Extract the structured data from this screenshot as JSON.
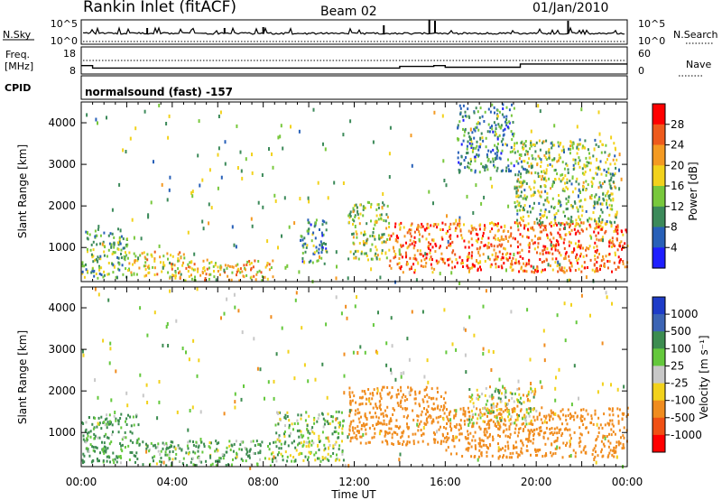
{
  "header": {
    "station": "Rankin Inlet (fitACF)",
    "beam": "Beam 02",
    "date": "01/Jan/2010"
  },
  "nsky_panel": {
    "left_label": "N.Sky",
    "left_tick_top": "10^5",
    "left_tick_bottom": "10^0",
    "right_tick_top": "10^5",
    "right_tick_bottom": "10^0",
    "right_label": "N.Search"
  },
  "freq_panel": {
    "left_label_1": "Freq.",
    "left_label_2": "[MHz]",
    "left_tick_top": "18",
    "left_tick_bottom": "8",
    "right_tick_top": "60",
    "right_tick_bottom": "0",
    "right_label": "Nave"
  },
  "cpid_panel": {
    "left_label": "CPID",
    "text": "normalsound (fast) -157"
  },
  "chart_data": [
    {
      "type": "heatmap",
      "parameter": "Power",
      "ylabel": "Slant Range [km]",
      "xlabel": "",
      "x_unit": "hours UT",
      "xlim": [
        0,
        24
      ],
      "ylim": [
        180,
        4500
      ],
      "y_ticks": [
        1000,
        2000,
        3000,
        4000
      ],
      "y_tick_labels": [
        "1000",
        "2000",
        "3000",
        "4000"
      ],
      "colorbar": {
        "label": "Power [dB]",
        "levels": [
          0,
          4,
          8,
          12,
          16,
          20,
          24,
          28,
          32
        ],
        "tick_labels": [
          "4",
          "8",
          "12",
          "16",
          "20",
          "24",
          "28"
        ],
        "colors": [
          "#1e1eff",
          "#2860b8",
          "#3c8a5a",
          "#78c83c",
          "#f2d21c",
          "#f49a22",
          "#ee5a1c",
          "#ff0000"
        ]
      },
      "echo_regions": [
        {
          "t0": 0.0,
          "t1": 2.0,
          "r0": 250,
          "r1": 1450,
          "level": 12
        },
        {
          "t0": 2.0,
          "t1": 4.5,
          "r0": 250,
          "r1": 900,
          "level": 18
        },
        {
          "t0": 4.5,
          "t1": 8.5,
          "r0": 200,
          "r1": 700,
          "level": 20
        },
        {
          "t0": 9.6,
          "t1": 10.8,
          "r0": 600,
          "r1": 1700,
          "level": 10
        },
        {
          "t0": 11.7,
          "t1": 13.5,
          "r0": 700,
          "r1": 2100,
          "level": 15
        },
        {
          "t0": 13.5,
          "t1": 24.0,
          "r0": 400,
          "r1": 1600,
          "level": 25
        },
        {
          "t0": 16.5,
          "t1": 19.0,
          "r0": 2800,
          "r1": 4450,
          "level": 10
        },
        {
          "t0": 19.0,
          "t1": 23.5,
          "r0": 1500,
          "r1": 3600,
          "level": 14
        }
      ]
    },
    {
      "type": "heatmap",
      "parameter": "Velocity",
      "ylabel": "Slant Range [km]",
      "xlabel": "Time UT",
      "x_unit": "hours UT",
      "xlim": [
        0,
        24
      ],
      "ylim": [
        180,
        4500
      ],
      "x_ticks": [
        0,
        4,
        8,
        12,
        16,
        20,
        24
      ],
      "x_tick_labels": [
        "00:00",
        "04:00",
        "08:00",
        "12:00",
        "16:00",
        "20:00",
        "00:00"
      ],
      "y_ticks": [
        1000,
        2000,
        3000,
        4000
      ],
      "y_tick_labels": [
        "1000",
        "2000",
        "3000",
        "4000"
      ],
      "colorbar": {
        "label": "Velocity [m s⁻¹]",
        "tick_labels": [
          "1000",
          "500",
          "100",
          "25",
          "-25",
          "-100",
          "-500",
          "-1000"
        ],
        "colors": [
          "#1e3cc8",
          "#3c64b4",
          "#3c8c50",
          "#64c83c",
          "#c8c8c8",
          "#f2d21c",
          "#f08c1e",
          "#f05014",
          "#ff0000"
        ]
      },
      "echo_regions": [
        {
          "t0": 0.0,
          "t1": 2.5,
          "r0": 250,
          "r1": 1450,
          "velocity": 150
        },
        {
          "t0": 2.5,
          "t1": 8.5,
          "r0": 200,
          "r1": 800,
          "velocity": 100
        },
        {
          "t0": 8.5,
          "t1": 11.5,
          "r0": 300,
          "r1": 1500,
          "velocity": 50
        },
        {
          "t0": 11.7,
          "t1": 16.0,
          "r0": 700,
          "r1": 2100,
          "velocity": -300
        },
        {
          "t0": 16.0,
          "t1": 24.0,
          "r0": 400,
          "r1": 1600,
          "velocity": -250
        },
        {
          "t0": 17.0,
          "t1": 20.0,
          "r0": 1200,
          "r1": 2100,
          "velocity": 0
        }
      ]
    },
    {
      "type": "line",
      "series": [
        {
          "name": "N.Sky",
          "values_profile": "noise, low and steady ~10^2 with occasional spikes (largest near 15:30 and 21:30)"
        },
        {
          "name": "N.Search",
          "values_profile": "dotted, near baseline"
        }
      ]
    },
    {
      "type": "line",
      "series": [
        {
          "name": "Freq.",
          "unit": "MHz",
          "approx_values": [
            [
              0,
              11.5
            ],
            [
              0.5,
              10.0
            ],
            [
              13.7,
              10.0
            ],
            [
              14.0,
              11.0
            ],
            [
              15.5,
              11.5
            ],
            [
              16.0,
              10.5
            ],
            [
              19.0,
              10.5
            ],
            [
              19.3,
              12.5
            ],
            [
              24,
              12.5
            ]
          ]
        },
        {
          "name": "Nave",
          "values_profile": "dotted, near 42"
        }
      ]
    }
  ]
}
